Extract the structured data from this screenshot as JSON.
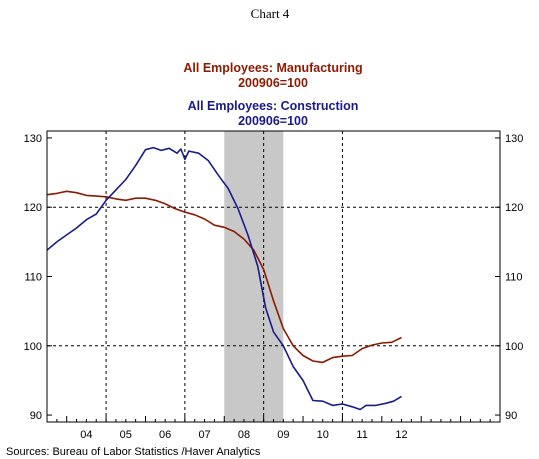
{
  "chart_data": {
    "type": "line",
    "title": "Chart 4",
    "series": [
      {
        "name": "All Employees: Manufacturing",
        "subtitle": "200906=100",
        "color": "#8b1a00",
        "points": [
          [
            2003.5,
            121.8
          ],
          [
            2003.75,
            122.0
          ],
          [
            2004.0,
            122.3
          ],
          [
            2004.25,
            122.1
          ],
          [
            2004.5,
            121.7
          ],
          [
            2004.75,
            121.6
          ],
          [
            2005.0,
            121.5
          ],
          [
            2005.25,
            121.2
          ],
          [
            2005.5,
            121.0
          ],
          [
            2005.75,
            121.3
          ],
          [
            2006.0,
            121.3
          ],
          [
            2006.25,
            121.0
          ],
          [
            2006.5,
            120.5
          ],
          [
            2006.75,
            119.8
          ],
          [
            2007.0,
            119.3
          ],
          [
            2007.25,
            118.9
          ],
          [
            2007.5,
            118.3
          ],
          [
            2007.75,
            117.4
          ],
          [
            2008.0,
            117.1
          ],
          [
            2008.25,
            116.5
          ],
          [
            2008.5,
            115.4
          ],
          [
            2008.75,
            113.8
          ],
          [
            2009.0,
            111.0
          ],
          [
            2009.25,
            106.5
          ],
          [
            2009.5,
            102.5
          ],
          [
            2009.75,
            100.0
          ],
          [
            2010.0,
            98.6
          ],
          [
            2010.25,
            97.8
          ],
          [
            2010.5,
            97.6
          ],
          [
            2010.75,
            98.3
          ],
          [
            2011.0,
            98.5
          ],
          [
            2011.25,
            98.6
          ],
          [
            2011.5,
            99.6
          ],
          [
            2011.75,
            100.1
          ],
          [
            2012.0,
            100.4
          ],
          [
            2012.25,
            100.5
          ],
          [
            2012.5,
            101.2
          ]
        ]
      },
      {
        "name": "All Employees: Construction",
        "subtitle": "200906=100",
        "color": "#1a1a8c",
        "points": [
          [
            2003.5,
            113.8
          ],
          [
            2003.75,
            115.0
          ],
          [
            2004.0,
            116.0
          ],
          [
            2004.25,
            117.0
          ],
          [
            2004.5,
            118.2
          ],
          [
            2004.75,
            119.0
          ],
          [
            2005.0,
            121.0
          ],
          [
            2005.25,
            122.5
          ],
          [
            2005.5,
            124.0
          ],
          [
            2005.75,
            126.0
          ],
          [
            2006.0,
            128.3
          ],
          [
            2006.2,
            128.6
          ],
          [
            2006.4,
            128.2
          ],
          [
            2006.6,
            128.5
          ],
          [
            2006.8,
            127.8
          ],
          [
            2006.9,
            128.4
          ],
          [
            2007.0,
            126.9
          ],
          [
            2007.1,
            128.1
          ],
          [
            2007.35,
            127.8
          ],
          [
            2007.6,
            126.7
          ],
          [
            2007.85,
            124.6
          ],
          [
            2008.1,
            122.7
          ],
          [
            2008.35,
            119.8
          ],
          [
            2008.6,
            116.0
          ],
          [
            2008.85,
            111.5
          ],
          [
            2009.05,
            105.5
          ],
          [
            2009.25,
            102.0
          ],
          [
            2009.5,
            100.0
          ],
          [
            2009.75,
            97.0
          ],
          [
            2010.0,
            95.0
          ],
          [
            2010.25,
            92.1
          ],
          [
            2010.5,
            92.0
          ],
          [
            2010.75,
            91.4
          ],
          [
            2011.0,
            91.6
          ],
          [
            2011.25,
            91.2
          ],
          [
            2011.45,
            90.8
          ],
          [
            2011.6,
            91.4
          ],
          [
            2011.85,
            91.4
          ],
          [
            2012.1,
            91.7
          ],
          [
            2012.3,
            92.0
          ],
          [
            2012.5,
            92.7
          ]
        ]
      }
    ],
    "x_axis": {
      "range": [
        2003.5,
        2015.0
      ],
      "tick_labels": [
        "04",
        "05",
        "06",
        "07",
        "08",
        "09",
        "10",
        "11",
        "12"
      ],
      "tick_positions": [
        2004,
        2005,
        2006,
        2007,
        2008,
        2009,
        2010,
        2011,
        2012
      ],
      "dashed_gridlines_at": [
        2005,
        2007,
        2009,
        2011
      ]
    },
    "y_axis": {
      "range": [
        89,
        131
      ],
      "ticks": [
        90,
        100,
        110,
        120,
        130
      ],
      "dashed_gridlines_at": [
        100,
        120
      ],
      "right_axis_mirrored": true
    },
    "recession_shading": {
      "from": 2008.0,
      "to": 2009.5,
      "color": "#c8c8c8"
    },
    "legend_placement": "top-center",
    "source": "Sources:  Bureau of Labor Statistics /Haver Analytics"
  }
}
